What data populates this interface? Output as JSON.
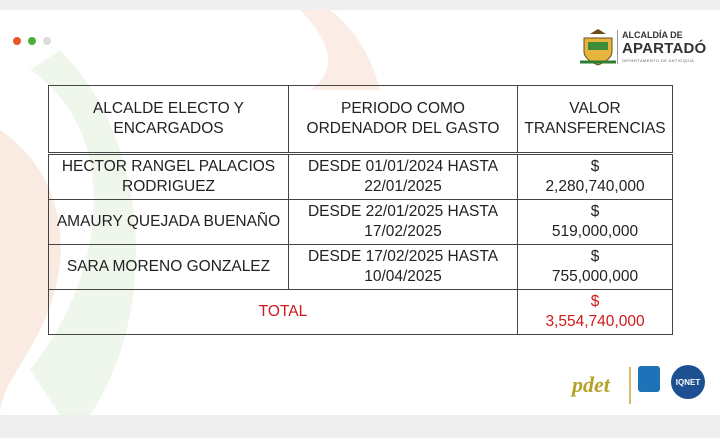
{
  "header": {
    "logo": {
      "line1": "ALCALDÍA DE",
      "line2": "APARTADÓ",
      "line3": "DEPARTAMENTO DE ANTIOQUIA"
    }
  },
  "table": {
    "headers": [
      "ALCALDE ELECTO Y ENCARGADOS",
      "PERIODO COMO ORDENADOR DEL GASTO",
      "VALOR TRANSFERENCIAS"
    ],
    "rows": [
      {
        "name": "HECTOR RANGEL PALACIOS RODRIGUEZ",
        "period": "DESDE 01/01/2024 HASTA 22/01/2025",
        "currency": "$",
        "amount": "2,280,740,000"
      },
      {
        "name": "AMAURY QUEJADA BUENAÑO",
        "period": "DESDE 22/01/2025 HASTA 17/02/2025",
        "currency": "$",
        "amount": "519,000,000"
      },
      {
        "name": "SARA MORENO GONZALEZ",
        "period": "DESDE 17/02/2025 HASTA 10/04/2025",
        "currency": "$",
        "amount": "755,000,000"
      }
    ],
    "total": {
      "label": "TOTAL",
      "currency": "$",
      "amount": "3,554,740,000"
    }
  },
  "footer": {
    "pdet": "pdet",
    "iqnet": "IQNET"
  }
}
